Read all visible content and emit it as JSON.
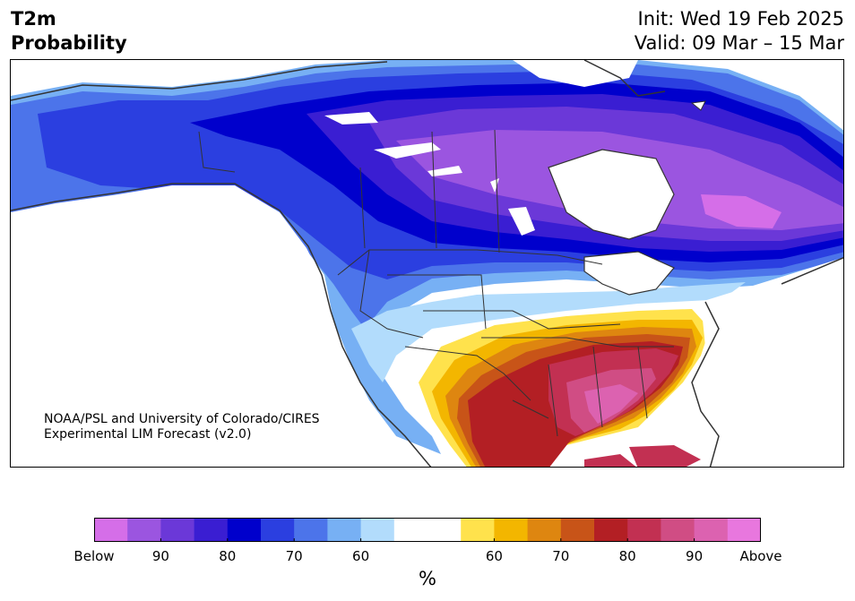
{
  "header": {
    "variable": "T2m",
    "product": "Probability",
    "init": "Init: Wed 19 Feb 2025",
    "valid": "Valid: 09 Mar – 15 Mar"
  },
  "credit": {
    "line1": "NOAA/PSL and University of Colorado/CIRES",
    "line2": "Experimental LIM Forecast (v2.0)"
  },
  "colorbar": {
    "unit": "%",
    "colors": [
      "#d56ee8",
      "#9b55e0",
      "#6b38d8",
      "#3a1ed2",
      "#0000cc",
      "#2b3fe0",
      "#4c74ea",
      "#77b0f4",
      "#b2dcfc",
      "#ffffff",
      "#ffffff",
      "#ffe24c",
      "#f3b600",
      "#de8610",
      "#c85418",
      "#b31f24",
      "#c23052",
      "#d04d84",
      "#dc62b0",
      "#e877de"
    ],
    "ticks": [
      "Below",
      "90",
      "80",
      "70",
      "60",
      "60",
      "70",
      "80",
      "90",
      "Above"
    ],
    "tick_positions": [
      0,
      2,
      4,
      6,
      8,
      12,
      14,
      16,
      18,
      20
    ],
    "segments": 20
  },
  "map": {
    "ocean_color": "#ffffff",
    "lake_color": "#ffffff",
    "border_color": "#333333"
  }
}
